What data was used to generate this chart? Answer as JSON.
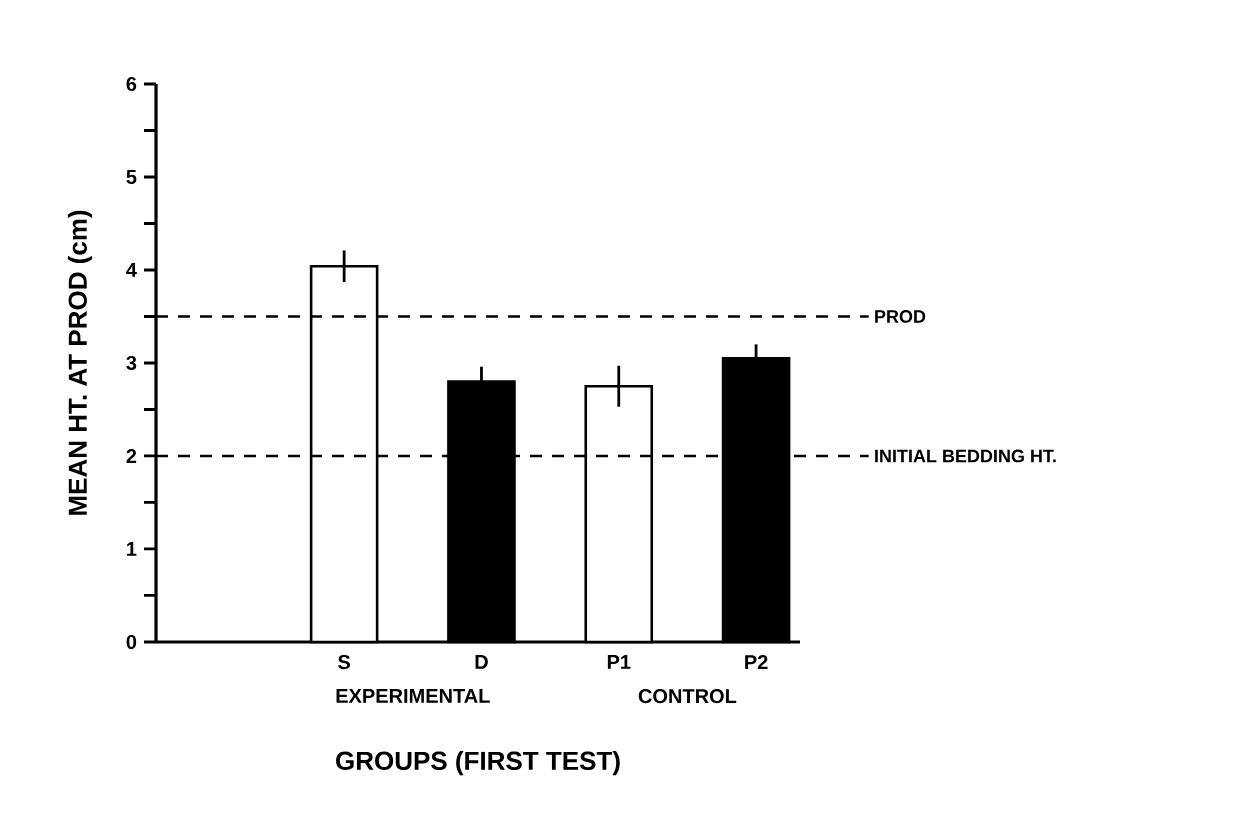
{
  "chart_data": {
    "type": "bar",
    "xlabel": "GROUPS (FIRST TEST)",
    "ylabel": "MEAN HT. AT PROD (cm)",
    "categories": [
      "S",
      "D",
      "P1",
      "P2"
    ],
    "values": [
      4.04,
      2.8,
      2.75,
      3.05
    ],
    "errors": [
      0.17,
      0.16,
      0.22,
      0.15
    ],
    "colors": [
      "#ffffff",
      "#000000",
      "#ffffff",
      "#000000"
    ],
    "ylim": [
      0,
      6
    ],
    "yticks": [
      0,
      {
        "value": 0.5,
        "label": null
      },
      1,
      {
        "value": 1.5,
        "label": null
      },
      2,
      {
        "value": 2.5,
        "label": null
      },
      3,
      {
        "value": 3.5,
        "label": null
      },
      4,
      {
        "value": 4.5,
        "label": null
      },
      5,
      {
        "value": 5.5,
        "label": null
      },
      6
    ],
    "ref_lines": [
      {
        "axis": "y",
        "value": 3.5,
        "label": "PROD",
        "line_style": "dashed"
      },
      {
        "axis": "y",
        "value": 2,
        "label": "INITIAL BEDDING HT.",
        "line_style": "dashed"
      }
    ],
    "annotations": [
      {
        "text": "EXPERIMENTAL"
      },
      {
        "text": "CONTROL"
      }
    ]
  }
}
